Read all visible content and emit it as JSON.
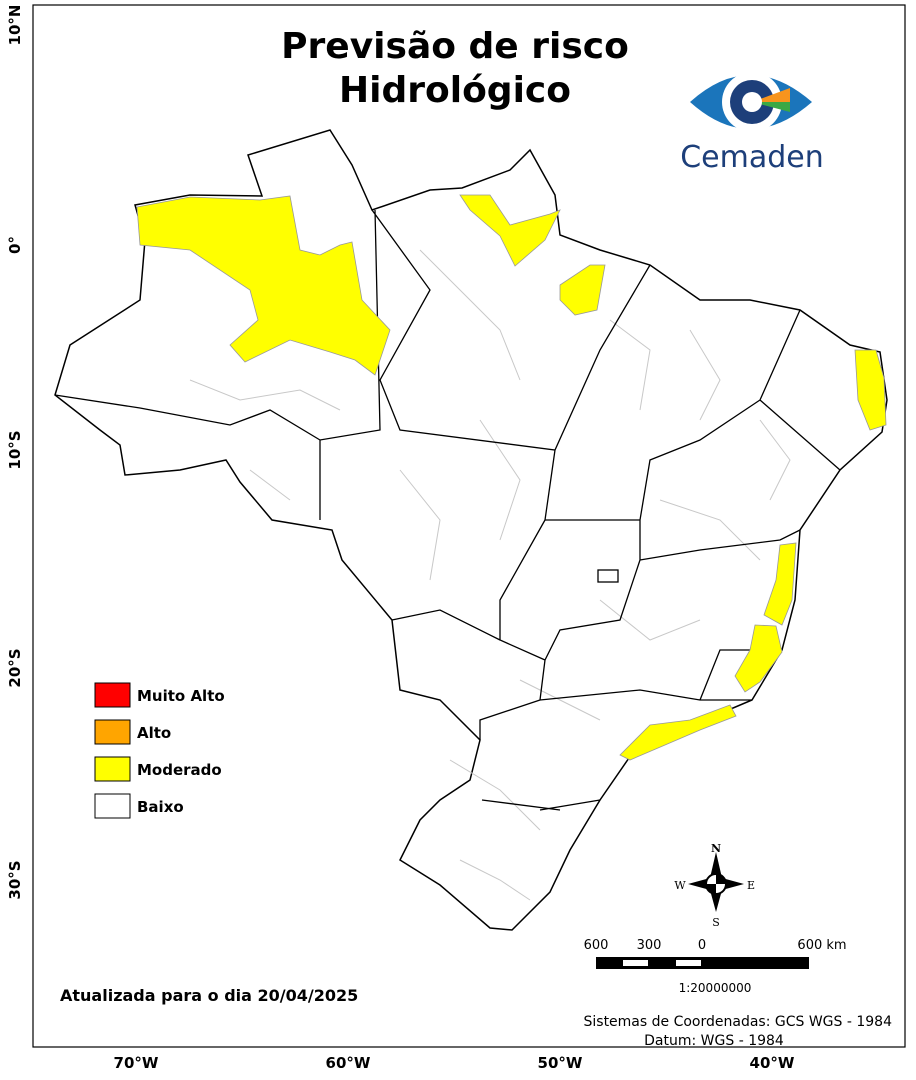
{
  "header": {
    "title_lines": [
      "Previsão de risco",
      "Hidrológico"
    ],
    "logo_text": "Cemaden"
  },
  "legend": {
    "items": [
      {
        "label": "Muito Alto",
        "color": "#ff0000"
      },
      {
        "label": "Alto",
        "color": "#ffa500"
      },
      {
        "label": "Moderado",
        "color": "#ffff00"
      },
      {
        "label": "Baixo",
        "color": "#ffffff"
      }
    ]
  },
  "grid_labels": {
    "latitude": [
      "10°N",
      "0°",
      "10°S",
      "20°S",
      "30°S"
    ],
    "longitude": [
      "70°W",
      "60°W",
      "50°W",
      "40°W"
    ]
  },
  "compass": {
    "north": "N",
    "south": "S",
    "east": "E",
    "west": "W"
  },
  "scale_bar": {
    "labels": [
      "600",
      "300",
      "0",
      "600 km"
    ],
    "ratio": "1:20000000"
  },
  "footer": {
    "updated": "Atualizada para o dia 20/04/2025",
    "coordinate_system": "Sistemas de Coordenadas: GCS WGS - 1984",
    "datum": "Datum: WGS - 1984"
  }
}
